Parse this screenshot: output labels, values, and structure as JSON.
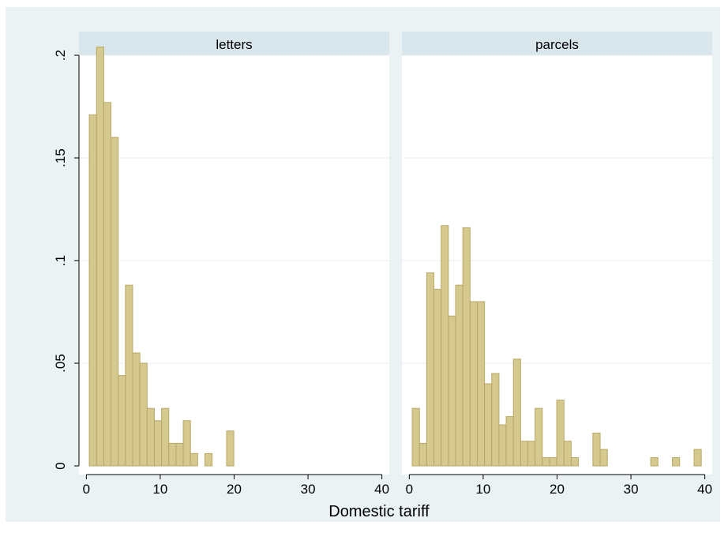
{
  "chart_data": {
    "type": "bar",
    "xlabel": "Domestic tariff",
    "ylabel": "",
    "xlim": [
      -1,
      41
    ],
    "ylim": [
      0,
      0.2
    ],
    "x_ticks": [
      0,
      10,
      20,
      30,
      40
    ],
    "x_tick_labels": [
      "0",
      "10",
      "20",
      "30",
      "40"
    ],
    "y_ticks": [
      0,
      0.05,
      0.1,
      0.15,
      0.2
    ],
    "y_tick_labels": [
      "0",
      ".05",
      ".1",
      ".15",
      ".2"
    ],
    "grid": true,
    "bin_width": 0.978,
    "colors": {
      "outer_background": "#eaf2f3",
      "plot_background": "#ffffff",
      "panel_header": "#d9e6eb",
      "bar_fill": "#d6c98f",
      "bar_edge": "#b8a865",
      "gridline": "#e9eef0",
      "axis": "#000000"
    },
    "panels": [
      {
        "name": "letters",
        "bins": [
          {
            "x0": 0.4,
            "value": 0.171
          },
          {
            "x0": 1.378,
            "value": 0.204
          },
          {
            "x0": 2.356,
            "value": 0.177
          },
          {
            "x0": 3.334,
            "value": 0.16
          },
          {
            "x0": 4.312,
            "value": 0.044
          },
          {
            "x0": 5.29,
            "value": 0.088
          },
          {
            "x0": 6.268,
            "value": 0.055
          },
          {
            "x0": 7.246,
            "value": 0.05
          },
          {
            "x0": 8.224,
            "value": 0.028
          },
          {
            "x0": 9.202,
            "value": 0.022
          },
          {
            "x0": 10.18,
            "value": 0.028
          },
          {
            "x0": 11.158,
            "value": 0.011
          },
          {
            "x0": 12.136,
            "value": 0.011
          },
          {
            "x0": 13.114,
            "value": 0.022
          },
          {
            "x0": 14.092,
            "value": 0.006
          },
          {
            "x0": 16.048,
            "value": 0.006
          },
          {
            "x0": 18.982,
            "value": 0.017
          }
        ]
      },
      {
        "name": "parcels",
        "bins": [
          {
            "x0": 0.4,
            "value": 0.028
          },
          {
            "x0": 1.378,
            "value": 0.011
          },
          {
            "x0": 2.356,
            "value": 0.094
          },
          {
            "x0": 3.334,
            "value": 0.086
          },
          {
            "x0": 4.312,
            "value": 0.117
          },
          {
            "x0": 5.29,
            "value": 0.073
          },
          {
            "x0": 6.268,
            "value": 0.088
          },
          {
            "x0": 7.246,
            "value": 0.116
          },
          {
            "x0": 8.224,
            "value": 0.08
          },
          {
            "x0": 9.202,
            "value": 0.08
          },
          {
            "x0": 10.18,
            "value": 0.04
          },
          {
            "x0": 11.158,
            "value": 0.045
          },
          {
            "x0": 12.136,
            "value": 0.02
          },
          {
            "x0": 13.114,
            "value": 0.024
          },
          {
            "x0": 14.092,
            "value": 0.052
          },
          {
            "x0": 15.07,
            "value": 0.012
          },
          {
            "x0": 16.048,
            "value": 0.012
          },
          {
            "x0": 17.026,
            "value": 0.028
          },
          {
            "x0": 18.004,
            "value": 0.004
          },
          {
            "x0": 18.982,
            "value": 0.004
          },
          {
            "x0": 19.96,
            "value": 0.032
          },
          {
            "x0": 20.938,
            "value": 0.012
          },
          {
            "x0": 21.916,
            "value": 0.004
          },
          {
            "x0": 24.85,
            "value": 0.016
          },
          {
            "x0": 25.828,
            "value": 0.008
          },
          {
            "x0": 32.674,
            "value": 0.004
          },
          {
            "x0": 35.608,
            "value": 0.004
          },
          {
            "x0": 38.542,
            "value": 0.008
          }
        ]
      }
    ]
  }
}
